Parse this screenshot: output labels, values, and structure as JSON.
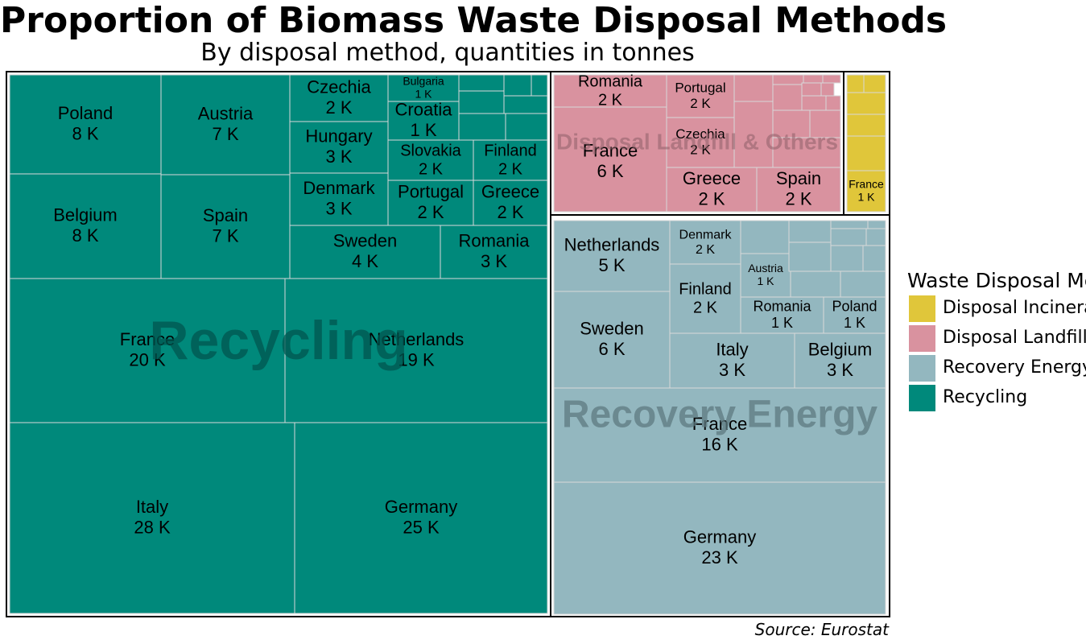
{
  "title": "Proportion of Biomass Waste Disposal Methods",
  "subtitle": "By disposal method, quantities in tonnes",
  "caption": "Source: Eurostat",
  "legend": {
    "title": "Waste Disposal Methods",
    "items": [
      {
        "label": "Disposal Incineration",
        "color": "#E0C63A"
      },
      {
        "label": "Disposal Landfill & Others",
        "color": "#D9929F"
      },
      {
        "label": "Recovery Energy",
        "color": "#93B7BF"
      },
      {
        "label": "Recycling",
        "color": "#00897B"
      }
    ]
  },
  "chart_data": {
    "type": "treemap",
    "unit": "tonnes",
    "groups": [
      {
        "name": "Recycling",
        "color": "#00897B",
        "tiles": [
          {
            "name": "Italy",
            "value": 28000,
            "label": "28 K"
          },
          {
            "name": "Germany",
            "value": 25000,
            "label": "25 K"
          },
          {
            "name": "France",
            "value": 20000,
            "label": "20 K"
          },
          {
            "name": "Netherlands",
            "value": 19000,
            "label": "19 K"
          },
          {
            "name": "Poland",
            "value": 8000,
            "label": "8 K"
          },
          {
            "name": "Belgium",
            "value": 8000,
            "label": "8 K"
          },
          {
            "name": "Austria",
            "value": 7000,
            "label": "7 K"
          },
          {
            "name": "Spain",
            "value": 7000,
            "label": "7 K"
          },
          {
            "name": "Sweden",
            "value": 4000,
            "label": "4 K"
          },
          {
            "name": "Romania",
            "value": 3000,
            "label": "3 K"
          },
          {
            "name": "Hungary",
            "value": 3000,
            "label": "3 K"
          },
          {
            "name": "Denmark",
            "value": 3000,
            "label": "3 K"
          },
          {
            "name": "Czechia",
            "value": 2000,
            "label": "2 K"
          },
          {
            "name": "Slovakia",
            "value": 2000,
            "label": "2 K"
          },
          {
            "name": "Finland",
            "value": 2000,
            "label": "2 K"
          },
          {
            "name": "Portugal",
            "value": 2000,
            "label": "2 K"
          },
          {
            "name": "Greece",
            "value": 2000,
            "label": "2 K"
          },
          {
            "name": "Croatia",
            "value": 1000,
            "label": "1 K"
          },
          {
            "name": "Bulgaria",
            "value": 1000,
            "label": "1 K"
          }
        ]
      },
      {
        "name": "Disposal Landfill & Others",
        "color": "#D9929F",
        "tiles": [
          {
            "name": "France",
            "value": 6000,
            "label": "6 K"
          },
          {
            "name": "Romania",
            "value": 2000,
            "label": "2 K"
          },
          {
            "name": "Portugal",
            "value": 2000,
            "label": "2 K"
          },
          {
            "name": "Czechia",
            "value": 2000,
            "label": "2 K"
          },
          {
            "name": "Greece",
            "value": 2000,
            "label": "2 K"
          },
          {
            "name": "Spain",
            "value": 2000,
            "label": "2 K"
          }
        ]
      },
      {
        "name": "Recovery Energy",
        "color": "#93B7BF",
        "tiles": [
          {
            "name": "Germany",
            "value": 23000,
            "label": "23 K"
          },
          {
            "name": "France",
            "value": 16000,
            "label": "16 K"
          },
          {
            "name": "Sweden",
            "value": 6000,
            "label": "6 K"
          },
          {
            "name": "Netherlands",
            "value": 5000,
            "label": "5 K"
          },
          {
            "name": "Italy",
            "value": 3000,
            "label": "3 K"
          },
          {
            "name": "Belgium",
            "value": 3000,
            "label": "3 K"
          },
          {
            "name": "Finland",
            "value": 2000,
            "label": "2 K"
          },
          {
            "name": "Denmark",
            "value": 2000,
            "label": "2 K"
          },
          {
            "name": "Romania",
            "value": 1000,
            "label": "1 K"
          },
          {
            "name": "Poland",
            "value": 1000,
            "label": "1 K"
          },
          {
            "name": "Austria",
            "value": 1000,
            "label": "1 K"
          }
        ]
      },
      {
        "name": "Disposal Incineration",
        "color": "#E0C63A",
        "tiles": [
          {
            "name": "France",
            "value": 1000,
            "label": "1 K"
          }
        ]
      }
    ]
  }
}
